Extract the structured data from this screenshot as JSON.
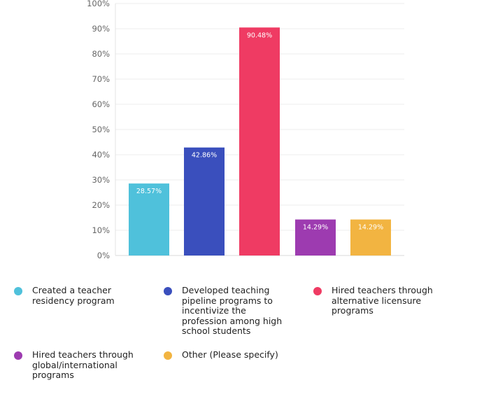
{
  "chart_data": {
    "type": "bar",
    "categories": [
      "Created a teacher residency program",
      "Developed teaching pipeline programs to incentivize the profession among high school students",
      "Hired teachers through alternative licensure programs",
      "Hired teachers through global/international programs",
      "Other (Please specify)"
    ],
    "values": [
      28.57,
      42.86,
      90.48,
      14.29,
      14.29
    ],
    "value_labels": [
      "28.57%",
      "42.86%",
      "90.48%",
      "14.29%",
      "14.29%"
    ],
    "colors": [
      "#4fc1db",
      "#3a4fbd",
      "#ef3b63",
      "#9d3bb0",
      "#f2b441"
    ],
    "ylim": [
      0,
      100
    ],
    "yticks": [
      0,
      10,
      20,
      30,
      40,
      50,
      60,
      70,
      80,
      90,
      100
    ],
    "ytick_labels": [
      "0%",
      "10%",
      "20%",
      "30%",
      "40%",
      "50%",
      "60%",
      "70%",
      "80%",
      "90%",
      "100%"
    ],
    "grid": true,
    "legend_position": "bottom",
    "legend": [
      {
        "lines": [
          "Created a teacher",
          "residency program"
        ]
      },
      {
        "lines": [
          "Developed teaching",
          "pipeline programs to",
          "incentivize the",
          "profession among high",
          "school students"
        ]
      },
      {
        "lines": [
          "Hired teachers through",
          "alternative licensure",
          "programs"
        ]
      },
      {
        "lines": [
          "Hired teachers through",
          "global/international",
          "programs"
        ]
      },
      {
        "lines": [
          "Other (Please specify)"
        ]
      }
    ]
  }
}
